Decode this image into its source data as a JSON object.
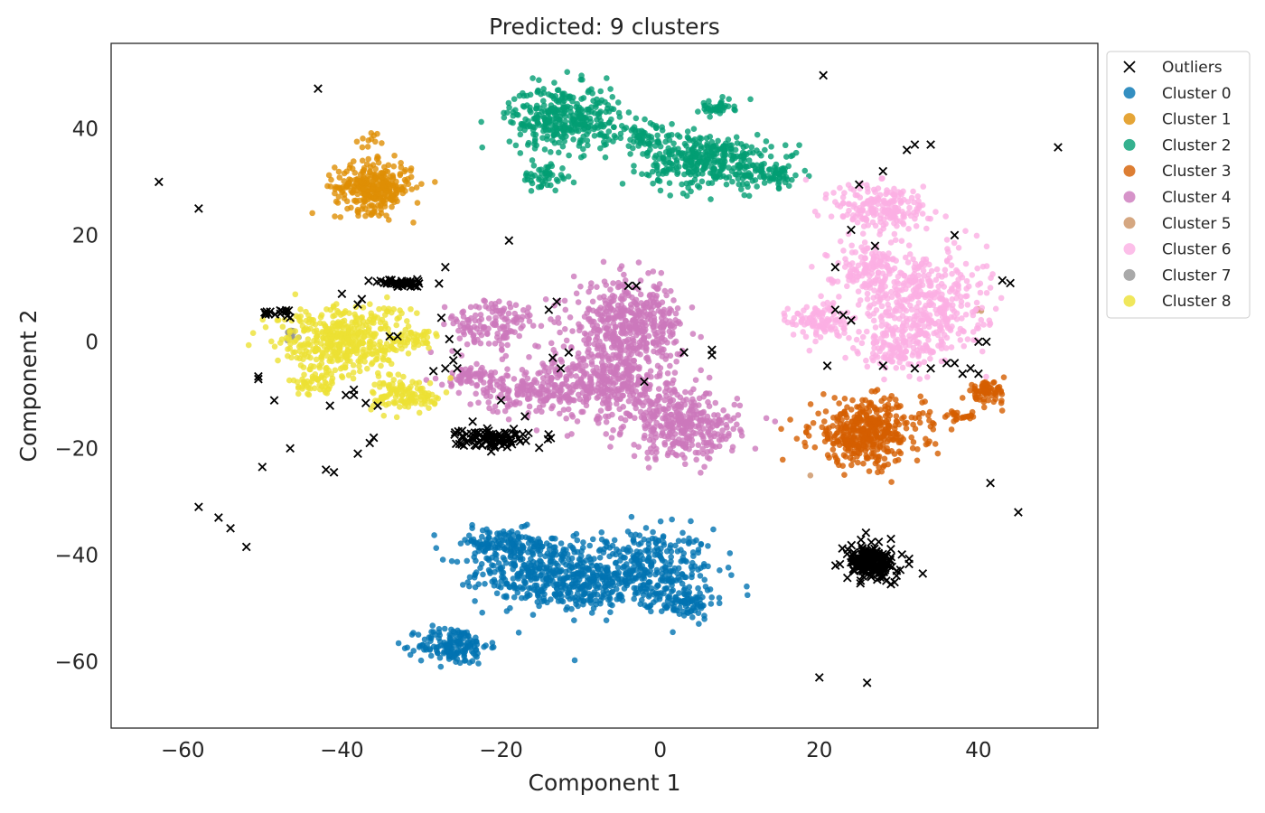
{
  "chart_data": {
    "type": "scatter",
    "title": "Predicted: 9 clusters",
    "xlabel": "Component 1",
    "ylabel": "Component 2",
    "xlim": [
      -69,
      55
    ],
    "ylim": [
      -72.5,
      56
    ],
    "xticks": [
      -60,
      -40,
      -20,
      0,
      20,
      40
    ],
    "yticks": [
      -60,
      -40,
      -20,
      0,
      20,
      40
    ],
    "xtick_labels": [
      "−60",
      "−40",
      "−20",
      "0",
      "20",
      "40"
    ],
    "ytick_labels": [
      "−60",
      "−40",
      "−20",
      "0",
      "20",
      "40"
    ],
    "grid": false,
    "legend_position": "outside-top-right",
    "legend": [
      {
        "label": "Outliers",
        "marker": "x",
        "color": "#000000"
      },
      {
        "label": "Cluster 0",
        "marker": "o",
        "color": "#0173b2"
      },
      {
        "label": "Cluster 1",
        "marker": "o",
        "color": "#de8f05"
      },
      {
        "label": "Cluster 2",
        "marker": "o",
        "color": "#029e73"
      },
      {
        "label": "Cluster 3",
        "marker": "o",
        "color": "#d55e00"
      },
      {
        "label": "Cluster 4",
        "marker": "o",
        "color": "#cc78bc"
      },
      {
        "label": "Cluster 5",
        "marker": "o",
        "color": "#ca9161"
      },
      {
        "label": "Cluster 6",
        "marker": "o",
        "color": "#fbafe4"
      },
      {
        "label": "Cluster 7",
        "marker": "o",
        "color": "#949494"
      },
      {
        "label": "Cluster 8",
        "marker": "o",
        "color": "#ece133"
      }
    ],
    "series": [
      {
        "name": "Cluster 0",
        "color": "#0173b2",
        "blobs": [
          {
            "cx": -3,
            "cy": -43,
            "sx": 5,
            "sy": 4,
            "n": 420
          },
          {
            "cx": -16,
            "cy": -43,
            "sx": 3.5,
            "sy": 3,
            "n": 260
          },
          {
            "cx": -20,
            "cy": -38,
            "sx": 3.5,
            "sy": 1.5,
            "n": 120
          },
          {
            "cx": 3,
            "cy": -49,
            "sx": 2,
            "sy": 1.5,
            "n": 80
          },
          {
            "cx": -26,
            "cy": -57,
            "sx": 2.2,
            "sy": 1.8,
            "n": 160
          },
          {
            "cx": -10,
            "cy": -46,
            "sx": 3,
            "sy": 2,
            "n": 120
          }
        ]
      },
      {
        "name": "Cluster 1",
        "color": "#de8f05",
        "blobs": [
          {
            "cx": -36,
            "cy": 29,
            "sx": 2.4,
            "sy": 2.3,
            "n": 320
          },
          {
            "cx": -36.5,
            "cy": 37,
            "sx": 1.2,
            "sy": 1.5,
            "n": 12
          }
        ]
      },
      {
        "name": "Cluster 2",
        "color": "#029e73",
        "blobs": [
          {
            "cx": -12,
            "cy": 42,
            "sx": 3.5,
            "sy": 3,
            "n": 360
          },
          {
            "cx": 6,
            "cy": 34,
            "sx": 4,
            "sy": 2.5,
            "n": 340
          },
          {
            "cx": -14.5,
            "cy": 31,
            "sx": 1.4,
            "sy": 1.3,
            "n": 50
          },
          {
            "cx": 14,
            "cy": 31.5,
            "sx": 2,
            "sy": 1.2,
            "n": 70
          },
          {
            "cx": 7,
            "cy": 44,
            "sx": 1.2,
            "sy": 0.7,
            "n": 40
          },
          {
            "cx": -2,
            "cy": 38,
            "sx": 2.5,
            "sy": 1.5,
            "n": 60
          }
        ]
      },
      {
        "name": "Cluster 3",
        "color": "#d55e00",
        "blobs": [
          {
            "cx": 26,
            "cy": -17,
            "sx": 3.5,
            "sy": 3,
            "n": 420
          },
          {
            "cx": 41,
            "cy": -9.5,
            "sx": 1.2,
            "sy": 1,
            "n": 70
          },
          {
            "cx": 37.5,
            "cy": -14,
            "sx": 1.2,
            "sy": 0.5,
            "n": 25
          }
        ]
      },
      {
        "name": "Cluster 4",
        "color": "#cc78bc",
        "blobs": [
          {
            "cx": -4,
            "cy": 3,
            "sx": 3.5,
            "sy": 4,
            "n": 460
          },
          {
            "cx": -6,
            "cy": -8,
            "sx": 4,
            "sy": 3.5,
            "n": 360
          },
          {
            "cx": 3,
            "cy": -16,
            "sx": 3.5,
            "sy": 3,
            "n": 320
          },
          {
            "cx": -21,
            "cy": 3,
            "sx": 3,
            "sy": 2.5,
            "n": 140
          },
          {
            "cx": -16,
            "cy": -9,
            "sx": 3.5,
            "sy": 2,
            "n": 170
          },
          {
            "cx": -23.5,
            "cy": -6.5,
            "sx": 2,
            "sy": 0.9,
            "n": 70
          }
        ]
      },
      {
        "name": "Cluster 5",
        "color": "#ca9161",
        "blobs": [
          {
            "cx": 40,
            "cy": 6,
            "sx": 0.2,
            "sy": 0.2,
            "n": 3
          },
          {
            "cx": 18.8,
            "cy": -25,
            "sx": 0.1,
            "sy": 0.1,
            "n": 1
          }
        ]
      },
      {
        "name": "Cluster 6",
        "color": "#fbafe4",
        "blobs": [
          {
            "cx": 33,
            "cy": 7,
            "sx": 4,
            "sy": 5,
            "n": 420
          },
          {
            "cx": 28,
            "cy": 25,
            "sx": 3,
            "sy": 2.5,
            "n": 200
          },
          {
            "cx": 20,
            "cy": 4,
            "sx": 1.8,
            "sy": 1.6,
            "n": 110
          },
          {
            "cx": 26,
            "cy": 14,
            "sx": 2.5,
            "sy": 2,
            "n": 130
          },
          {
            "cx": 30,
            "cy": -1,
            "sx": 2.5,
            "sy": 2,
            "n": 120
          }
        ]
      },
      {
        "name": "Cluster 7",
        "color": "#949494",
        "blobs": [
          {
            "cx": -46.5,
            "cy": 1.5,
            "sx": 0.5,
            "sy": 0.4,
            "n": 20
          }
        ]
      },
      {
        "name": "Cluster 8",
        "color": "#ece133",
        "blobs": [
          {
            "cx": -40,
            "cy": 0,
            "sx": 4,
            "sy": 3.5,
            "n": 460
          },
          {
            "cx": -31.5,
            "cy": -10,
            "sx": 2.2,
            "sy": 1.5,
            "n": 120
          },
          {
            "cx": -30.5,
            "cy": 0.5,
            "sx": 1.5,
            "sy": 1,
            "n": 40
          },
          {
            "cx": -44,
            "cy": -8,
            "sx": 1.5,
            "sy": 1,
            "n": 40
          }
        ]
      },
      {
        "name": "Outliers",
        "color": "#000000",
        "marker": "x",
        "blobs": [
          {
            "cx": 26.5,
            "cy": -41.5,
            "sx": 1.5,
            "sy": 1.5,
            "n": 200
          },
          {
            "cx": -21,
            "cy": -18,
            "sx": 2.2,
            "sy": 0.9,
            "n": 90
          },
          {
            "cx": -32.5,
            "cy": 11,
            "sx": 1.8,
            "sy": 0.4,
            "n": 40
          },
          {
            "cx": -48.5,
            "cy": 5.5,
            "sx": 1.2,
            "sy": 0.4,
            "n": 15
          }
        ],
        "points": [
          [
            -63,
            30
          ],
          [
            -58,
            25
          ],
          [
            -43,
            47.5
          ],
          [
            20.5,
            50
          ],
          [
            50,
            36.5
          ],
          [
            34,
            37
          ],
          [
            32,
            37
          ],
          [
            31,
            36
          ],
          [
            28,
            32
          ],
          [
            25,
            29.5
          ],
          [
            27,
            18
          ],
          [
            22,
            14
          ],
          [
            24,
            21
          ],
          [
            37,
            20
          ],
          [
            44,
            11
          ],
          [
            43,
            11.5
          ],
          [
            -58,
            -31
          ],
          [
            -55.5,
            -33
          ],
          [
            -54,
            -35
          ],
          [
            -52,
            -38.5
          ],
          [
            -50,
            -23.5
          ],
          [
            -46.5,
            -20
          ],
          [
            -42,
            -24
          ],
          [
            -41,
            -24.5
          ],
          [
            -38,
            -21
          ],
          [
            -36.5,
            -19
          ],
          [
            -36,
            -18
          ],
          [
            -48.5,
            -11
          ],
          [
            -50.5,
            -6.5
          ],
          [
            -50.5,
            -7
          ],
          [
            -40,
            9
          ],
          [
            -37.5,
            8
          ],
          [
            -38,
            7
          ],
          [
            -41.5,
            -12
          ],
          [
            -38.5,
            -9
          ],
          [
            -38.5,
            -10
          ],
          [
            -39.5,
            -10
          ],
          [
            -37,
            -11.5
          ],
          [
            -35.5,
            -12
          ],
          [
            -34,
            1
          ],
          [
            -33,
            1
          ],
          [
            -27,
            14
          ],
          [
            -19,
            19
          ],
          [
            -27.5,
            4.5
          ],
          [
            -26.5,
            0.5
          ],
          [
            -25.5,
            -2
          ],
          [
            -26,
            -3.5
          ],
          [
            -27,
            -5
          ],
          [
            -28.5,
            -5.5
          ],
          [
            -25.5,
            -5
          ],
          [
            -20,
            -11
          ],
          [
            -17,
            -14
          ],
          [
            -13.5,
            -3
          ],
          [
            -12.5,
            -5
          ],
          [
            -14,
            6
          ],
          [
            -13,
            7.5
          ],
          [
            -11.5,
            -2
          ],
          [
            -4,
            10.5
          ],
          [
            -3,
            10.5
          ],
          [
            -2,
            -7.5
          ],
          [
            3,
            -2
          ],
          [
            6.5,
            -2.5
          ],
          [
            6.5,
            -1.5
          ],
          [
            21,
            -4.5
          ],
          [
            22,
            6
          ],
          [
            23,
            5
          ],
          [
            24,
            4
          ],
          [
            28,
            -4.5
          ],
          [
            32,
            -5
          ],
          [
            34,
            -5
          ],
          [
            36,
            -4
          ],
          [
            37,
            -4
          ],
          [
            38,
            -6
          ],
          [
            39,
            -5
          ],
          [
            40,
            -6
          ],
          [
            40,
            0
          ],
          [
            41,
            0
          ],
          [
            41.5,
            -26.5
          ],
          [
            45,
            -32
          ],
          [
            33,
            -43.5
          ],
          [
            20,
            -63
          ],
          [
            26,
            -64
          ],
          [
            29,
            -45.5
          ],
          [
            29,
            -37
          ]
        ]
      }
    ]
  }
}
